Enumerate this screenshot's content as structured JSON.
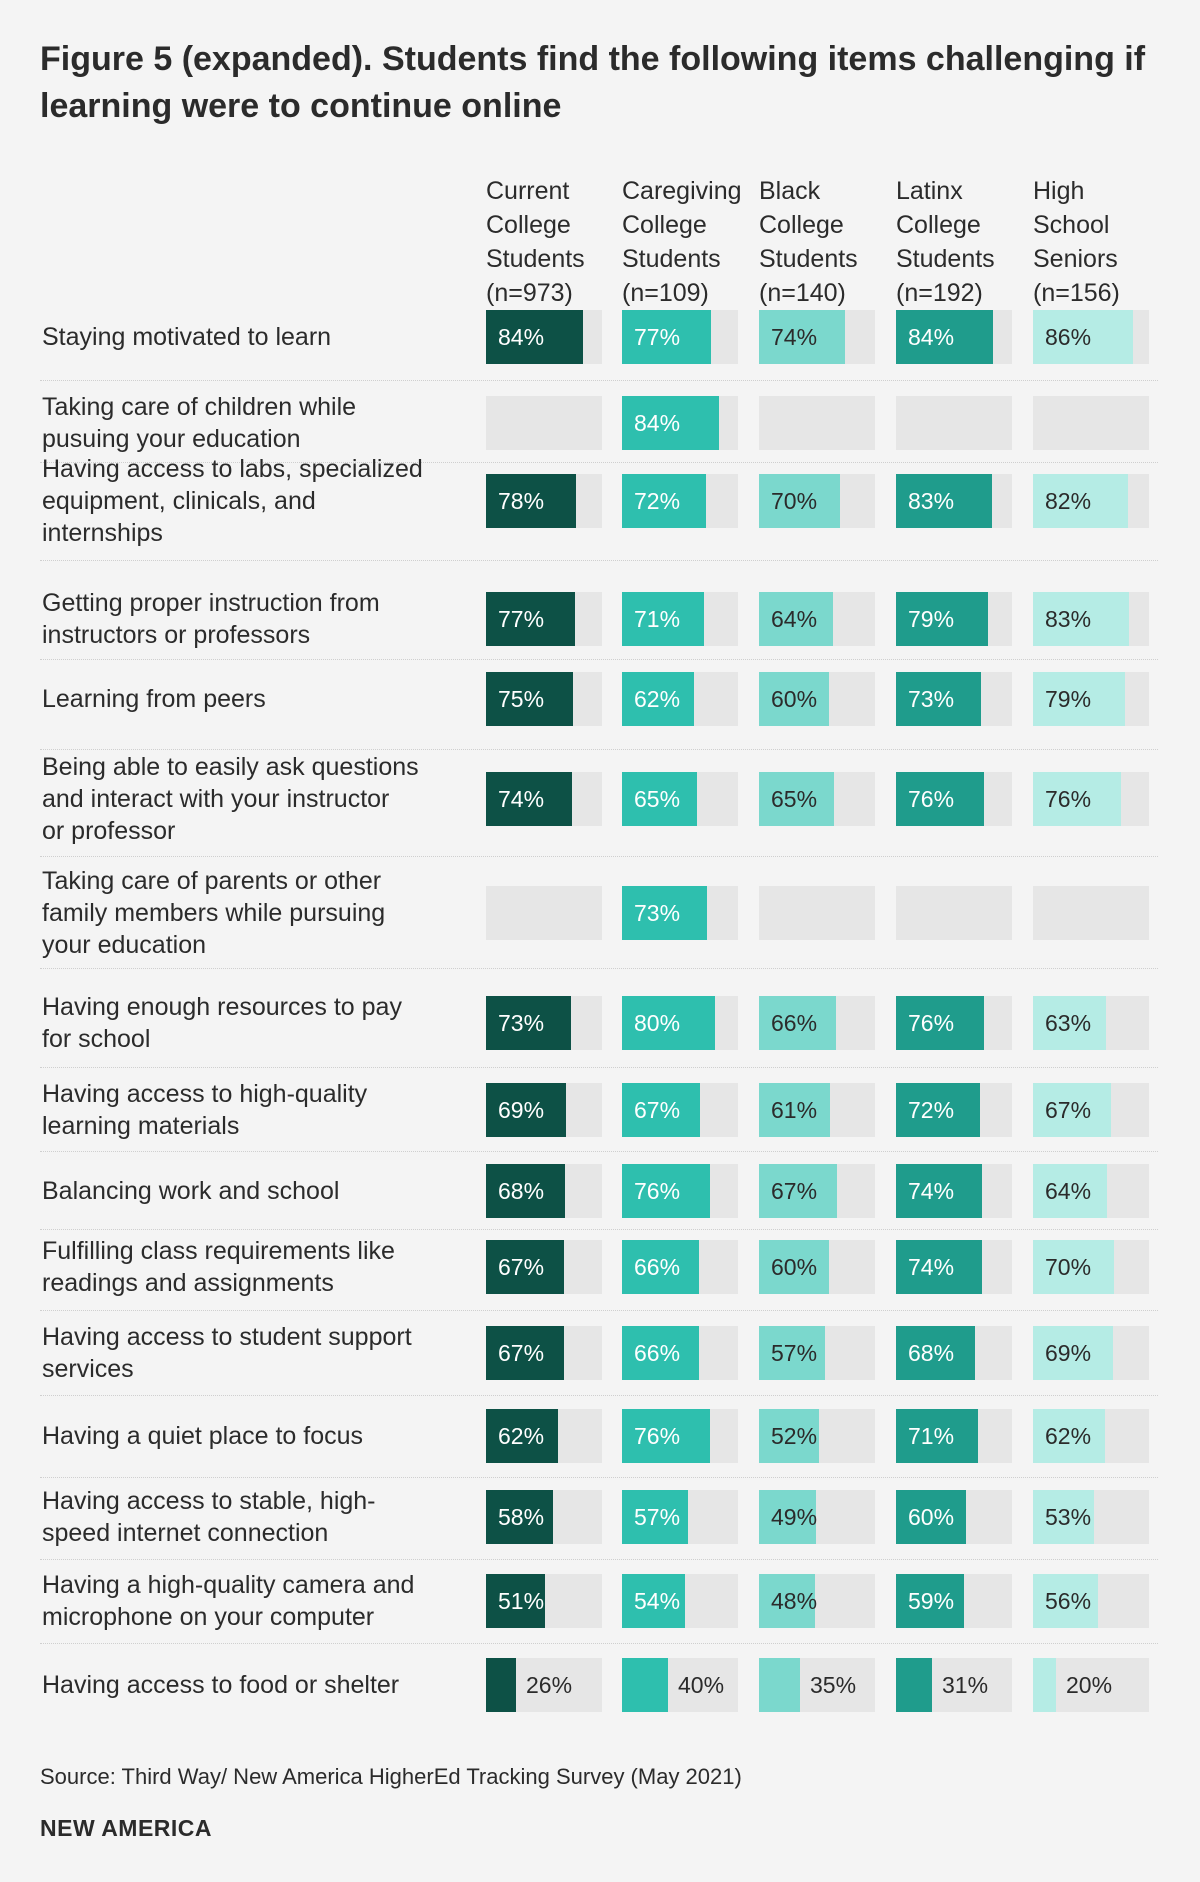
{
  "title": "Figure 5 (expanded). Students find the following items challenging if learning were to continue online",
  "source": "Source: Third Way/ New America HigherEd Tracking Survey (May 2021)",
  "brand": "NEW AMERICA",
  "colors": {
    "background": "#f4f4f4",
    "track": "#e6e6e6",
    "series": [
      "#0d5146",
      "#2ebfae",
      "#7bd8cd",
      "#1f9c8c",
      "#b5ece5"
    ],
    "label_on_bar": [
      "#ffffff",
      "#ffffff",
      "#2b2b2b",
      "#ffffff",
      "#2b2b2b"
    ]
  },
  "chart_data": {
    "type": "bar",
    "title": "Figure 5 (expanded). Students find the following items challenging if learning were to continue online",
    "unit": "%",
    "xlim": [
      0,
      100
    ],
    "series": [
      {
        "name": "Current College Students (n=973)",
        "header": "Current\nCollege\nStudents\n(n=973)",
        "values": [
          84,
          null,
          78,
          77,
          75,
          74,
          null,
          73,
          69,
          68,
          67,
          67,
          62,
          58,
          51,
          26
        ],
        "labels": [
          "84%",
          "",
          "78%",
          "77%",
          "75%",
          "74%",
          "",
          "73%",
          "69%",
          "68%",
          "67%",
          "67%",
          "62%",
          "58%",
          "51%",
          "26%"
        ]
      },
      {
        "name": "Caregiving College Students (n=109)",
        "header": "Caregiving\nCollege\nStudents\n(n=109)",
        "values": [
          77,
          84,
          72,
          71,
          62,
          65,
          73,
          80,
          67,
          76,
          66,
          66,
          76,
          57,
          54,
          40
        ],
        "labels": [
          "77%",
          "84%",
          "72%",
          "71%",
          "62%",
          "65%",
          "73%",
          "80%",
          "67%",
          "76%",
          "66%",
          "66%",
          "76%",
          "57%",
          "54%",
          "40%"
        ]
      },
      {
        "name": "Black College Students (n=140)",
        "header": "Black\nCollege\nStudents\n(n=140)",
        "values": [
          74,
          null,
          70,
          64,
          60,
          65,
          null,
          66,
          61,
          67,
          60,
          57,
          52,
          49,
          48,
          35
        ],
        "labels": [
          "74%",
          "",
          "70%",
          "64%",
          "60%",
          "65%",
          "",
          "66%",
          "61%",
          "67%",
          "60%",
          "57%",
          "52%",
          "49%",
          "48%",
          "35%"
        ]
      },
      {
        "name": "Latinx College Students (n=192)",
        "header": "Latinx\nCollege\nStudents\n(n=192)",
        "values": [
          84,
          null,
          83,
          79,
          73,
          76,
          null,
          76,
          72,
          74,
          74,
          68,
          71,
          60,
          59,
          31
        ],
        "labels": [
          "84%",
          "",
          "83%",
          "79%",
          "73%",
          "76%",
          "",
          "76%",
          "72%",
          "74%",
          "74%",
          "68%",
          "71%",
          "60%",
          "59%",
          "31%"
        ]
      },
      {
        "name": "High School Seniors (n=156)",
        "header": "High\nSchool\nSeniors\n(n=156)",
        "values": [
          86,
          null,
          82,
          83,
          79,
          76,
          null,
          63,
          67,
          64,
          70,
          69,
          62,
          53,
          56,
          20
        ],
        "labels": [
          "86%",
          "",
          "82%",
          "83%",
          "79%",
          "76%",
          "",
          "63%",
          "67%",
          "64%",
          "70%",
          "69%",
          "62%",
          "53%",
          "56%",
          "20%"
        ]
      }
    ],
    "categories": [
      {
        "label": "Staying motivated to learn",
        "lines": [
          "Staying motivated to learn"
        ]
      },
      {
        "label": "Taking care of children while pusuing your education",
        "lines": [
          "Taking care of children while",
          "pusuing your education"
        ]
      },
      {
        "label": "Having access to labs, specialized equipment, clinicals, and internships",
        "lines": [
          "Having access to labs, specialized",
          "equipment, clinicals, and",
          "internships"
        ]
      },
      {
        "label": "Getting proper instruction from instructors or professors",
        "lines": [
          "Getting proper instruction from",
          "instructors or professors"
        ]
      },
      {
        "label": "Learning from peers",
        "lines": [
          "Learning from peers"
        ]
      },
      {
        "label": "Being able to easily ask questions and interact with your instructor or professor",
        "lines": [
          "Being able to easily ask questions",
          "and interact with your instructor",
          "or professor"
        ]
      },
      {
        "label": "Taking care of parents or other family members while pursuing your education",
        "lines": [
          "Taking care of parents or other",
          "family members while pursuing",
          "your education"
        ]
      },
      {
        "label": "Having enough resources to pay for school",
        "lines": [
          "Having enough resources to pay",
          "for school"
        ]
      },
      {
        "label": "Having access to high-quality learning materials",
        "lines": [
          "Having access to high-quality",
          "learning materials"
        ]
      },
      {
        "label": "Balancing work and school",
        "lines": [
          "Balancing work and school"
        ]
      },
      {
        "label": "Fulfilling class requirements like readings and assignments",
        "lines": [
          "Fulfilling class requirements like",
          "readings and assignments"
        ]
      },
      {
        "label": "Having access to student support services",
        "lines": [
          "Having access to student support",
          "services"
        ]
      },
      {
        "label": "Having a quiet place to focus",
        "lines": [
          "Having a quiet place to focus"
        ]
      },
      {
        "label": "Having access to stable, high-speed internet connection",
        "lines": [
          "Having access to stable, high-",
          "speed internet connection"
        ]
      },
      {
        "label": "Having a high-quality camera and microphone on your computer",
        "lines": [
          "Having a high-quality camera and",
          "microphone on your computer"
        ]
      },
      {
        "label": "Having access to food or shelter",
        "lines": [
          "Having access to food or shelter"
        ]
      }
    ]
  }
}
